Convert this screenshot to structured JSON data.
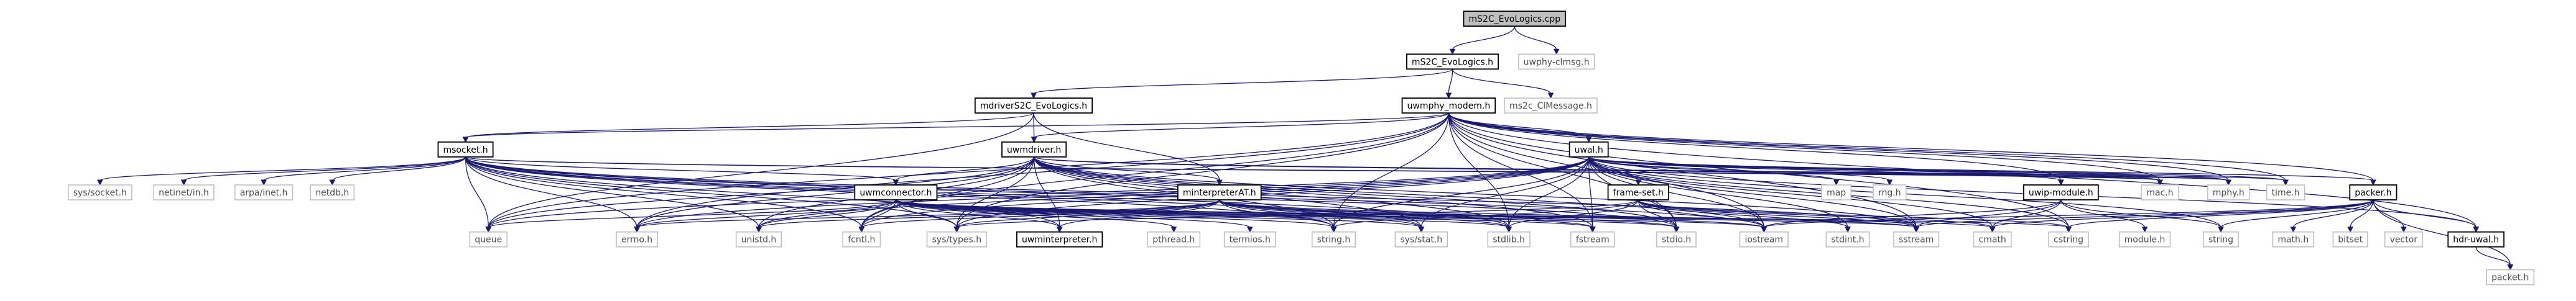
{
  "graph": {
    "kind": "include dependency graph",
    "root": "mS2C_EvoLogics.cpp",
    "colors": {
      "edge": "#191970",
      "root_fill": "#bfbfbf",
      "internal_border": "#000000",
      "external_border": "#bfbfbf",
      "background": "#ffffff"
    },
    "nodes": [
      {
        "id": "mS2C_EvoLogics.cpp",
        "label": "mS2C_EvoLogics.cpp",
        "kind": "root"
      },
      {
        "id": "mS2C_EvoLogics.h",
        "label": "mS2C_EvoLogics.h",
        "kind": "internal"
      },
      {
        "id": "uwphy-clmsg.h",
        "label": "uwphy-clmsg.h",
        "kind": "external"
      },
      {
        "id": "mdriverS2C_EvoLogics.h",
        "label": "mdriverS2C_EvoLogics.h",
        "kind": "internal"
      },
      {
        "id": "uwmphy_modem.h",
        "label": "uwmphy_modem.h",
        "kind": "internal"
      },
      {
        "id": "ms2c_ClMessage.h",
        "label": "ms2c_ClMessage.h",
        "kind": "external"
      },
      {
        "id": "msocket.h",
        "label": "msocket.h",
        "kind": "internal"
      },
      {
        "id": "uwmdriver.h",
        "label": "uwmdriver.h",
        "kind": "internal"
      },
      {
        "id": "uwal.h",
        "label": "uwal.h",
        "kind": "internal"
      },
      {
        "id": "sys/socket.h",
        "label": "sys/socket.h",
        "kind": "external"
      },
      {
        "id": "netinet/in.h",
        "label": "netinet/in.h",
        "kind": "external"
      },
      {
        "id": "arpa/inet.h",
        "label": "arpa/inet.h",
        "kind": "external"
      },
      {
        "id": "netdb.h",
        "label": "netdb.h",
        "kind": "external"
      },
      {
        "id": "uwmconnector.h",
        "label": "uwmconnector.h",
        "kind": "internal"
      },
      {
        "id": "minterpreterAT.h",
        "label": "minterpreterAT.h",
        "kind": "internal"
      },
      {
        "id": "frame-set.h",
        "label": "frame-set.h",
        "kind": "internal"
      },
      {
        "id": "map",
        "label": "map",
        "kind": "external"
      },
      {
        "id": "rng.h",
        "label": "rng.h",
        "kind": "external"
      },
      {
        "id": "uwip-module.h",
        "label": "uwip-module.h",
        "kind": "internal"
      },
      {
        "id": "mac.h",
        "label": "mac.h",
        "kind": "external"
      },
      {
        "id": "mphy.h",
        "label": "mphy.h",
        "kind": "external"
      },
      {
        "id": "time.h",
        "label": "time.h",
        "kind": "external"
      },
      {
        "id": "packer.h",
        "label": "packer.h",
        "kind": "internal"
      },
      {
        "id": "queue",
        "label": "queue",
        "kind": "external"
      },
      {
        "id": "errno.h",
        "label": "errno.h",
        "kind": "external"
      },
      {
        "id": "unistd.h",
        "label": "unistd.h",
        "kind": "external"
      },
      {
        "id": "fcntl.h",
        "label": "fcntl.h",
        "kind": "external"
      },
      {
        "id": "sys/types.h",
        "label": "sys/types.h",
        "kind": "external"
      },
      {
        "id": "uwminterpreter.h",
        "label": "uwminterpreter.h",
        "kind": "internal"
      },
      {
        "id": "pthread.h",
        "label": "pthread.h",
        "kind": "external"
      },
      {
        "id": "termios.h",
        "label": "termios.h",
        "kind": "external"
      },
      {
        "id": "string.h",
        "label": "string.h",
        "kind": "external"
      },
      {
        "id": "sys/stat.h",
        "label": "sys/stat.h",
        "kind": "external"
      },
      {
        "id": "stdlib.h",
        "label": "stdlib.h",
        "kind": "external"
      },
      {
        "id": "fstream",
        "label": "fstream",
        "kind": "external"
      },
      {
        "id": "stdio.h",
        "label": "stdio.h",
        "kind": "external"
      },
      {
        "id": "iostream",
        "label": "iostream",
        "kind": "external"
      },
      {
        "id": "stdint.h",
        "label": "stdint.h",
        "kind": "external"
      },
      {
        "id": "sstream",
        "label": "sstream",
        "kind": "external"
      },
      {
        "id": "cmath",
        "label": "cmath",
        "kind": "external"
      },
      {
        "id": "cstring",
        "label": "cstring",
        "kind": "external"
      },
      {
        "id": "module.h",
        "label": "module.h",
        "kind": "external"
      },
      {
        "id": "string",
        "label": "string",
        "kind": "external"
      },
      {
        "id": "math.h",
        "label": "math.h",
        "kind": "external"
      },
      {
        "id": "bitset",
        "label": "bitset",
        "kind": "external"
      },
      {
        "id": "vector",
        "label": "vector",
        "kind": "external"
      },
      {
        "id": "hdr-uwal.h",
        "label": "hdr-uwal.h",
        "kind": "internal"
      },
      {
        "id": "packet.h",
        "label": "packet.h",
        "kind": "external"
      }
    ],
    "edges": [
      [
        "mS2C_EvoLogics.cpp",
        "mS2C_EvoLogics.h"
      ],
      [
        "mS2C_EvoLogics.cpp",
        "uwphy-clmsg.h"
      ],
      [
        "mS2C_EvoLogics.h",
        "mdriverS2C_EvoLogics.h"
      ],
      [
        "mS2C_EvoLogics.h",
        "uwmphy_modem.h"
      ],
      [
        "mS2C_EvoLogics.h",
        "ms2c_ClMessage.h"
      ],
      [
        "mdriverS2C_EvoLogics.h",
        "msocket.h"
      ],
      [
        "mdriverS2C_EvoLogics.h",
        "uwmdriver.h"
      ],
      [
        "mdriverS2C_EvoLogics.h",
        "minterpreterAT.h"
      ],
      [
        "mdriverS2C_EvoLogics.h",
        "queue"
      ],
      [
        "uwmphy_modem.h",
        "uwmdriver.h"
      ],
      [
        "uwmphy_modem.h",
        "uwal.h"
      ],
      [
        "uwmphy_modem.h",
        "msocket.h"
      ],
      [
        "uwmphy_modem.h",
        "uwip-module.h"
      ],
      [
        "uwmphy_modem.h",
        "mac.h"
      ],
      [
        "uwmphy_modem.h",
        "mphy.h"
      ],
      [
        "uwmphy_modem.h",
        "time.h"
      ],
      [
        "uwmphy_modem.h",
        "packer.h"
      ],
      [
        "uwmphy_modem.h",
        "hdr-uwal.h"
      ],
      [
        "uwmphy_modem.h",
        "stdio.h"
      ],
      [
        "uwmphy_modem.h",
        "iostream"
      ],
      [
        "uwmphy_modem.h",
        "fstream"
      ],
      [
        "uwmphy_modem.h",
        "sstream"
      ],
      [
        "uwmphy_modem.h",
        "cstring"
      ],
      [
        "uwmphy_modem.h",
        "string.h"
      ],
      [
        "uwmphy_modem.h",
        "stdlib.h"
      ],
      [
        "uwmphy_modem.h",
        "sys/types.h"
      ],
      [
        "uwmphy_modem.h",
        "errno.h"
      ],
      [
        "uwmphy_modem.h",
        "fcntl.h"
      ],
      [
        "uwmphy_modem.h",
        "queue"
      ],
      [
        "msocket.h",
        "sys/socket.h"
      ],
      [
        "msocket.h",
        "netinet/in.h"
      ],
      [
        "msocket.h",
        "arpa/inet.h"
      ],
      [
        "msocket.h",
        "netdb.h"
      ],
      [
        "msocket.h",
        "uwmconnector.h"
      ],
      [
        "msocket.h",
        "errno.h"
      ],
      [
        "msocket.h",
        "unistd.h"
      ],
      [
        "msocket.h",
        "fcntl.h"
      ],
      [
        "msocket.h",
        "sys/types.h"
      ],
      [
        "msocket.h",
        "string.h"
      ],
      [
        "msocket.h",
        "sys/stat.h"
      ],
      [
        "msocket.h",
        "stdlib.h"
      ],
      [
        "msocket.h",
        "stdio.h"
      ],
      [
        "msocket.h",
        "iostream"
      ],
      [
        "msocket.h",
        "queue"
      ],
      [
        "msocket.h",
        "sstream"
      ],
      [
        "msocket.h",
        "mac.h"
      ],
      [
        "msocket.h",
        "mphy.h"
      ],
      [
        "msocket.h",
        "uwminterpreter.h"
      ],
      [
        "uwmdriver.h",
        "uwmconnector.h"
      ],
      [
        "uwmdriver.h",
        "uwminterpreter.h"
      ],
      [
        "uwmdriver.h",
        "minterpreterAT.h"
      ],
      [
        "uwmdriver.h",
        "errno.h"
      ],
      [
        "uwmdriver.h",
        "unistd.h"
      ],
      [
        "uwmdriver.h",
        "fcntl.h"
      ],
      [
        "uwmdriver.h",
        "sys/types.h"
      ],
      [
        "uwmdriver.h",
        "string.h"
      ],
      [
        "uwmdriver.h",
        "sys/stat.h"
      ],
      [
        "uwmdriver.h",
        "stdlib.h"
      ],
      [
        "uwmdriver.h",
        "stdio.h"
      ],
      [
        "uwmdriver.h",
        "iostream"
      ],
      [
        "uwmdriver.h",
        "fstream"
      ],
      [
        "uwmdriver.h",
        "sstream"
      ],
      [
        "uwmdriver.h",
        "mac.h"
      ],
      [
        "uwmdriver.h",
        "mphy.h"
      ],
      [
        "uwmdriver.h",
        "time.h"
      ],
      [
        "uwmdriver.h",
        "queue"
      ],
      [
        "uwal.h",
        "frame-set.h"
      ],
      [
        "uwal.h",
        "map"
      ],
      [
        "uwal.h",
        "rng.h"
      ],
      [
        "uwal.h",
        "mac.h"
      ],
      [
        "uwal.h",
        "mphy.h"
      ],
      [
        "uwal.h",
        "packer.h"
      ],
      [
        "uwal.h",
        "hdr-uwal.h"
      ],
      [
        "uwal.h",
        "stdint.h"
      ],
      [
        "uwal.h",
        "iostream"
      ],
      [
        "uwal.h",
        "sstream"
      ],
      [
        "uwal.h",
        "cmath"
      ],
      [
        "uwal.h",
        "cstring"
      ],
      [
        "uwal.h",
        "stdio.h"
      ],
      [
        "uwal.h",
        "stdlib.h"
      ],
      [
        "uwal.h",
        "string.h"
      ],
      [
        "uwal.h",
        "fstream"
      ],
      [
        "uwal.h",
        "sys/types.h"
      ],
      [
        "uwal.h",
        "sys/stat.h"
      ],
      [
        "uwal.h",
        "fcntl.h"
      ],
      [
        "uwal.h",
        "unistd.h"
      ],
      [
        "uwal.h",
        "errno.h"
      ],
      [
        "uwal.h",
        "queue"
      ],
      [
        "uwal.h",
        "string"
      ],
      [
        "uwal.h",
        "time.h"
      ],
      [
        "uwal.h",
        "uwip-module.h"
      ],
      [
        "uwmconnector.h",
        "uwminterpreter.h"
      ],
      [
        "uwmconnector.h",
        "pthread.h"
      ],
      [
        "uwmconnector.h",
        "termios.h"
      ],
      [
        "uwmconnector.h",
        "string.h"
      ],
      [
        "uwmconnector.h",
        "sys/stat.h"
      ],
      [
        "uwmconnector.h",
        "stdlib.h"
      ],
      [
        "uwmconnector.h",
        "fstream"
      ],
      [
        "uwmconnector.h",
        "stdio.h"
      ],
      [
        "uwmconnector.h",
        "iostream"
      ],
      [
        "uwmconnector.h",
        "sstream"
      ],
      [
        "uwmconnector.h",
        "cmath"
      ],
      [
        "uwmconnector.h",
        "cstring"
      ],
      [
        "uwmconnector.h",
        "errno.h"
      ],
      [
        "uwmconnector.h",
        "unistd.h"
      ],
      [
        "uwmconnector.h",
        "fcntl.h"
      ],
      [
        "uwmconnector.h",
        "sys/types.h"
      ],
      [
        "uwmconnector.h",
        "queue"
      ],
      [
        "minterpreterAT.h",
        "uwminterpreter.h"
      ],
      [
        "minterpreterAT.h",
        "string.h"
      ],
      [
        "minterpreterAT.h",
        "sys/stat.h"
      ],
      [
        "minterpreterAT.h",
        "stdlib.h"
      ],
      [
        "minterpreterAT.h",
        "fstream"
      ],
      [
        "minterpreterAT.h",
        "stdio.h"
      ],
      [
        "minterpreterAT.h",
        "iostream"
      ],
      [
        "minterpreterAT.h",
        "sstream"
      ],
      [
        "minterpreterAT.h",
        "fcntl.h"
      ],
      [
        "minterpreterAT.h",
        "sys/types.h"
      ],
      [
        "minterpreterAT.h",
        "unistd.h"
      ],
      [
        "minterpreterAT.h",
        "errno.h"
      ],
      [
        "frame-set.h",
        "string.h"
      ],
      [
        "frame-set.h",
        "stdlib.h"
      ],
      [
        "frame-set.h",
        "stdio.h"
      ],
      [
        "frame-set.h",
        "iostream"
      ],
      [
        "frame-set.h",
        "stdint.h"
      ],
      [
        "frame-set.h",
        "sstream"
      ],
      [
        "frame-set.h",
        "cmath"
      ],
      [
        "frame-set.h",
        "cstring"
      ],
      [
        "frame-set.h",
        "sys/types.h"
      ],
      [
        "uwip-module.h",
        "module.h"
      ],
      [
        "uwip-module.h",
        "string"
      ],
      [
        "uwip-module.h",
        "sstream"
      ],
      [
        "uwip-module.h",
        "iostream"
      ],
      [
        "uwip-module.h",
        "cmath"
      ],
      [
        "packer.h",
        "hdr-uwal.h"
      ],
      [
        "packer.h",
        "packet.h"
      ],
      [
        "packer.h",
        "math.h"
      ],
      [
        "packer.h",
        "bitset"
      ],
      [
        "packer.h",
        "vector"
      ],
      [
        "packer.h",
        "string"
      ],
      [
        "packer.h",
        "sstream"
      ],
      [
        "packer.h",
        "cstring"
      ],
      [
        "packer.h",
        "iostream"
      ],
      [
        "packer.h",
        "cmath"
      ],
      [
        "hdr-uwal.h",
        "packet.h"
      ]
    ]
  }
}
